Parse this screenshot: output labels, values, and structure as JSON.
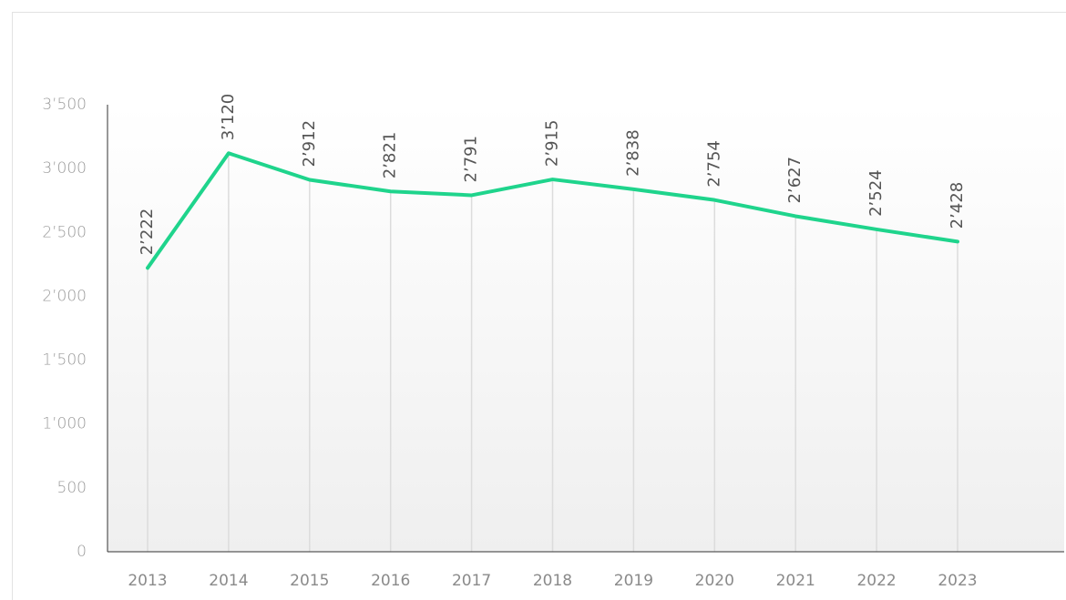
{
  "chart_data": {
    "type": "line",
    "categories": [
      "2013",
      "2014",
      "2015",
      "2016",
      "2017",
      "2018",
      "2019",
      "2020",
      "2021",
      "2022",
      "2023"
    ],
    "series": [
      {
        "color": "#1fd48c",
        "values": [
          2222,
          3120,
          2912,
          2821,
          2791,
          2915,
          2838,
          2754,
          2627,
          2524,
          2428
        ],
        "value_labels": [
          "2’222",
          "3’120",
          "2’912",
          "2’821",
          "2’791",
          "2’915",
          "2’838",
          "2’754",
          "2’627",
          "2’524",
          "2’428"
        ]
      }
    ],
    "ylim": [
      0,
      3500
    ],
    "yticks": [
      {
        "value": 0,
        "label": "0"
      },
      {
        "value": 500,
        "label": "500"
      },
      {
        "value": 1000,
        "label": "1’000"
      },
      {
        "value": 1500,
        "label": "1’500"
      },
      {
        "value": 2000,
        "label": "2’000"
      },
      {
        "value": 2500,
        "label": "2’500"
      },
      {
        "value": 3000,
        "label": "3’000"
      },
      {
        "value": 3500,
        "label": "3’500"
      }
    ]
  }
}
